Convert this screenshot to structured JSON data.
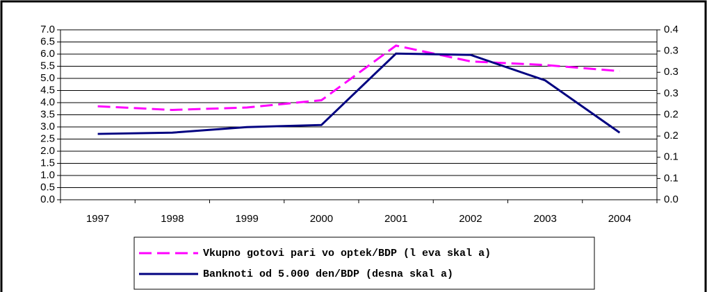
{
  "chart_data": {
    "type": "line",
    "categories": [
      "1997",
      "1998",
      "1999",
      "2000",
      "2001",
      "2002",
      "2003",
      "2004"
    ],
    "series": [
      {
        "name": "Vkupno gotovi pari vo optek/BDP (l eva skal a)",
        "color": "#ff00ff",
        "dash": true,
        "values": [
          3.85,
          3.7,
          3.8,
          4.1,
          6.35,
          5.7,
          5.55,
          5.3
        ]
      },
      {
        "name": "Banknoti od 5.000 den/BDP (desna skal a)",
        "color": "#000080",
        "axis": "y2",
        "values": [
          0.155,
          0.158,
          0.171,
          0.176,
          0.344,
          0.341,
          0.281,
          0.158
        ]
      }
    ],
    "ylim": [
      0,
      7
    ],
    "yticks": [
      {
        "value": 0,
        "label": "0.0"
      },
      0.5,
      {
        "value": 1,
        "label": "1.0"
      },
      1.5,
      {
        "value": 2,
        "label": "2.0"
      },
      2.5,
      {
        "value": 3,
        "label": "3.0"
      },
      3.5,
      {
        "value": 4,
        "label": "4.0"
      },
      4.5,
      {
        "value": 5,
        "label": "5.0"
      },
      5.5,
      {
        "value": 6,
        "label": "6.0"
      },
      6.5,
      {
        "value": 7,
        "label": "7.0"
      }
    ],
    "y2lim": [
      0,
      0.4
    ],
    "y2ticks": [
      {
        "value": 0,
        "label": "0.0"
      },
      {
        "value": 0.05,
        "label": "0.1"
      },
      0.1,
      {
        "value": 0.15,
        "label": "0.2"
      },
      0.2,
      {
        "value": 0.25,
        "label": "0.3"
      },
      0.3,
      {
        "value": 0.35,
        "label": "0.3"
      },
      0.4
    ],
    "grid": true
  }
}
